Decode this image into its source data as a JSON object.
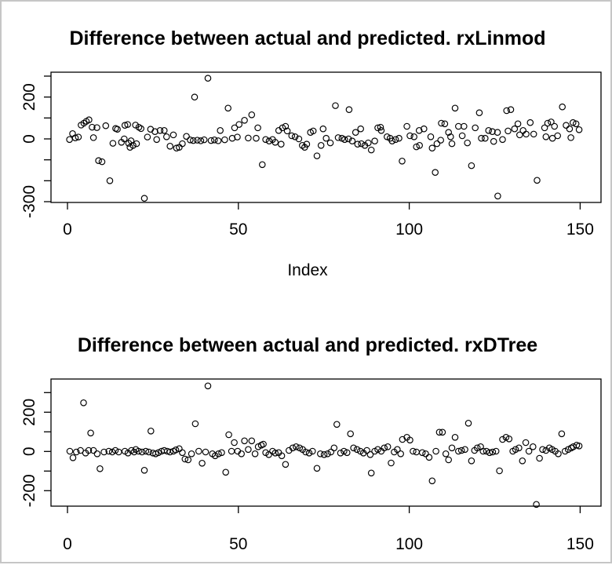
{
  "window": {
    "background": "#ffffff",
    "border_color": "#c6c6c6",
    "foreground": "#000000"
  },
  "chart_data": [
    {
      "type": "scatter",
      "title": "Difference between actual and predicted. rxLinmod",
      "xlabel": "Index",
      "ylabel": "",
      "marker": "open-circle",
      "grid": false,
      "legend": "none",
      "xlim": [
        -5,
        158
      ],
      "ylim": [
        -304,
        319
      ],
      "x_ticks": [
        0,
        50,
        100,
        150
      ],
      "x_tick_labels": [
        "0",
        "50",
        "100",
        "150"
      ],
      "y_ticks": [
        300,
        200,
        100,
        0,
        -100,
        -200,
        -300
      ],
      "y_tick_labels_visible": [
        "200",
        "0",
        "-300"
      ],
      "points": [
        [
          0.6,
          -3
        ],
        [
          1.5,
          25
        ],
        [
          2.3,
          5
        ],
        [
          3.2,
          9
        ],
        [
          4,
          66
        ],
        [
          4.8,
          75
        ],
        [
          5.5,
          84
        ],
        [
          6.3,
          91
        ],
        [
          7.2,
          56
        ],
        [
          7.6,
          6
        ],
        [
          8.6,
          54
        ],
        [
          9.1,
          -104
        ],
        [
          10.1,
          -109
        ],
        [
          11.2,
          63
        ],
        [
          12.4,
          -200
        ],
        [
          13.3,
          -21
        ],
        [
          14.1,
          50
        ],
        [
          14.6,
          46
        ],
        [
          15.8,
          -16
        ],
        [
          16.6,
          0
        ],
        [
          16.8,
          65
        ],
        [
          17.6,
          69
        ],
        [
          17.9,
          -21
        ],
        [
          18.3,
          -40
        ],
        [
          18.6,
          -9
        ],
        [
          19.2,
          -31
        ],
        [
          19.9,
          66
        ],
        [
          20.2,
          -23
        ],
        [
          20.9,
          56
        ],
        [
          21.5,
          49
        ],
        [
          22.5,
          -284
        ],
        [
          23.4,
          9
        ],
        [
          24.3,
          46
        ],
        [
          25.6,
          35
        ],
        [
          26.1,
          -3
        ],
        [
          27.1,
          40
        ],
        [
          28.3,
          40
        ],
        [
          29,
          10
        ],
        [
          30,
          -35
        ],
        [
          31,
          19
        ],
        [
          31.9,
          -44
        ],
        [
          32.7,
          -40
        ],
        [
          33.6,
          -23
        ],
        [
          34.8,
          12
        ],
        [
          35.9,
          -5
        ],
        [
          36.8,
          -8
        ],
        [
          37.2,
          200
        ],
        [
          38,
          -6
        ],
        [
          39,
          -9
        ],
        [
          40,
          -4
        ],
        [
          41.1,
          290
        ],
        [
          42,
          -8
        ],
        [
          43,
          -5
        ],
        [
          44.1,
          -9
        ],
        [
          44.7,
          40
        ],
        [
          46,
          -4
        ],
        [
          47,
          147
        ],
        [
          48.2,
          3
        ],
        [
          48.9,
          53
        ],
        [
          49.7,
          9
        ],
        [
          50.2,
          69
        ],
        [
          51.8,
          89
        ],
        [
          52.9,
          4
        ],
        [
          53.9,
          115
        ],
        [
          55.2,
          3
        ],
        [
          55.7,
          53
        ],
        [
          57,
          -123
        ],
        [
          58,
          -3
        ],
        [
          59,
          -10
        ],
        [
          60,
          -3
        ],
        [
          60.8,
          -16
        ],
        [
          61.8,
          40
        ],
        [
          62.5,
          -25
        ],
        [
          62.9,
          53
        ],
        [
          63.8,
          60
        ],
        [
          64.3,
          38
        ],
        [
          65.6,
          15
        ],
        [
          66.6,
          10
        ],
        [
          67.7,
          0
        ],
        [
          68.7,
          -31
        ],
        [
          69.4,
          -40
        ],
        [
          70,
          -25
        ],
        [
          71.1,
          31
        ],
        [
          71.9,
          38
        ],
        [
          73,
          -81
        ],
        [
          74.2,
          -31
        ],
        [
          74.8,
          48
        ],
        [
          75.7,
          3
        ],
        [
          76.9,
          -19
        ],
        [
          78.4,
          159
        ],
        [
          79.2,
          6
        ],
        [
          80.3,
          3
        ],
        [
          81.1,
          -3
        ],
        [
          82.2,
          0
        ],
        [
          82.4,
          140
        ],
        [
          83.3,
          -10
        ],
        [
          84.3,
          31
        ],
        [
          84.9,
          -25
        ],
        [
          85.8,
          48
        ],
        [
          86,
          -23
        ],
        [
          87,
          -31
        ],
        [
          88,
          -19
        ],
        [
          88.9,
          -53
        ],
        [
          89.9,
          -10
        ],
        [
          90.8,
          53
        ],
        [
          91.6,
          56
        ],
        [
          91.8,
          40
        ],
        [
          93.5,
          10
        ],
        [
          94.4,
          3
        ],
        [
          95,
          -10
        ],
        [
          96,
          -3
        ],
        [
          97,
          3
        ],
        [
          97.9,
          -106
        ],
        [
          99.3,
          60
        ],
        [
          100.2,
          15
        ],
        [
          101.4,
          10
        ],
        [
          102.1,
          -38
        ],
        [
          102.9,
          40
        ],
        [
          103,
          -31
        ],
        [
          104.3,
          48
        ],
        [
          106.3,
          10
        ],
        [
          106.7,
          -44
        ],
        [
          107.6,
          -160
        ],
        [
          108.1,
          -23
        ],
        [
          109.2,
          -6
        ],
        [
          109.4,
          75
        ],
        [
          110.4,
          72
        ],
        [
          111.5,
          31
        ],
        [
          112.1,
          10
        ],
        [
          112.5,
          -23
        ],
        [
          113.4,
          147
        ],
        [
          114.4,
          60
        ],
        [
          115.5,
          15
        ],
        [
          116,
          60
        ],
        [
          117,
          -19
        ],
        [
          118.2,
          -128
        ],
        [
          119.3,
          53
        ],
        [
          120.5,
          125
        ],
        [
          121.1,
          3
        ],
        [
          122.2,
          3
        ],
        [
          123.2,
          40
        ],
        [
          124.3,
          35
        ],
        [
          124.7,
          -12
        ],
        [
          125.8,
          31
        ],
        [
          125.9,
          -273
        ],
        [
          127.3,
          -3
        ],
        [
          128.5,
          135
        ],
        [
          128.9,
          38
        ],
        [
          129.7,
          140
        ],
        [
          130.8,
          48
        ],
        [
          131.8,
          72
        ],
        [
          132.3,
          19
        ],
        [
          133.3,
          40
        ],
        [
          134.2,
          23
        ],
        [
          135.4,
          78
        ],
        [
          136.4,
          23
        ],
        [
          137.4,
          -198
        ],
        [
          139.6,
          53
        ],
        [
          140,
          10
        ],
        [
          140.5,
          75
        ],
        [
          141.5,
          81
        ],
        [
          141.9,
          3
        ],
        [
          142.5,
          60
        ],
        [
          143.4,
          15
        ],
        [
          144.8,
          153
        ],
        [
          145.9,
          65
        ],
        [
          146.9,
          48
        ],
        [
          147.3,
          6
        ],
        [
          147.9,
          78
        ],
        [
          148.8,
          72
        ],
        [
          149.7,
          44
        ]
      ]
    },
    {
      "type": "scatter",
      "title": "Difference between actual and predicted. rxDTree",
      "xlabel": "",
      "ylabel": "",
      "marker": "open-circle",
      "grid": false,
      "legend": "none",
      "xlim": [
        -5,
        158
      ],
      "ylim": [
        -288,
        360
      ],
      "x_ticks": [
        0,
        50,
        100,
        150
      ],
      "x_tick_labels": [
        "0",
        "50",
        "100",
        "150"
      ],
      "y_ticks": [
        300,
        200,
        100,
        0,
        -100,
        -200
      ],
      "y_tick_labels_visible": [
        "200",
        "0",
        "-200"
      ],
      "points": [
        [
          0.7,
          1
        ],
        [
          1.6,
          -32
        ],
        [
          2.6,
          -3
        ],
        [
          3.8,
          5
        ],
        [
          4.7,
          248
        ],
        [
          5.3,
          -8
        ],
        [
          6.2,
          5
        ],
        [
          6.8,
          94
        ],
        [
          7.6,
          5
        ],
        [
          8.7,
          -12
        ],
        [
          9.5,
          -88
        ],
        [
          10.7,
          -3
        ],
        [
          12.1,
          1
        ],
        [
          13.1,
          -3
        ],
        [
          14,
          5
        ],
        [
          15,
          -3
        ],
        [
          16.8,
          1
        ],
        [
          17.7,
          -8
        ],
        [
          18.7,
          5
        ],
        [
          19.5,
          -3
        ],
        [
          20,
          10
        ],
        [
          20.8,
          1
        ],
        [
          21.8,
          -3
        ],
        [
          22.5,
          -96
        ],
        [
          22.9,
          1
        ],
        [
          23.8,
          -3
        ],
        [
          24.4,
          104
        ],
        [
          25,
          -8
        ],
        [
          25.8,
          -12
        ],
        [
          26.6,
          -6
        ],
        [
          27.5,
          1
        ],
        [
          28.3,
          5
        ],
        [
          29.2,
          1
        ],
        [
          30,
          -3
        ],
        [
          31,
          1
        ],
        [
          31.7,
          8
        ],
        [
          32.7,
          14
        ],
        [
          33.6,
          -6
        ],
        [
          34.4,
          -39
        ],
        [
          35.3,
          -43
        ],
        [
          36.3,
          -12
        ],
        [
          37.4,
          141
        ],
        [
          38.4,
          1
        ],
        [
          39.4,
          -60
        ],
        [
          40.4,
          -3
        ],
        [
          41.1,
          334
        ],
        [
          42.4,
          -12
        ],
        [
          43.2,
          -22
        ],
        [
          44.2,
          -12
        ],
        [
          45.1,
          -6
        ],
        [
          46.3,
          -106
        ],
        [
          47.2,
          85
        ],
        [
          48,
          1
        ],
        [
          48.8,
          45
        ],
        [
          49.8,
          1
        ],
        [
          50.9,
          -12
        ],
        [
          51.8,
          54
        ],
        [
          52.9,
          10
        ],
        [
          53.9,
          54
        ],
        [
          54.9,
          -12
        ],
        [
          55.8,
          24
        ],
        [
          56.7,
          32
        ],
        [
          57.3,
          37
        ],
        [
          58,
          -6
        ],
        [
          58.9,
          -16
        ],
        [
          60,
          1
        ],
        [
          60.8,
          -8
        ],
        [
          61.8,
          -6
        ],
        [
          62.7,
          -22
        ],
        [
          63.8,
          -66
        ],
        [
          64.8,
          5
        ],
        [
          65.9,
          18
        ],
        [
          66.9,
          24
        ],
        [
          67.9,
          18
        ],
        [
          68.8,
          10
        ],
        [
          69.7,
          -3
        ],
        [
          70.7,
          -8
        ],
        [
          71.7,
          1
        ],
        [
          73,
          -86
        ],
        [
          74,
          -12
        ],
        [
          75.1,
          -16
        ],
        [
          76.1,
          -12
        ],
        [
          77.1,
          -3
        ],
        [
          78,
          18
        ],
        [
          78.8,
          138
        ],
        [
          79.9,
          -8
        ],
        [
          80.9,
          1
        ],
        [
          81.8,
          -6
        ],
        [
          82.8,
          90
        ],
        [
          83.7,
          18
        ],
        [
          84.7,
          10
        ],
        [
          85.7,
          1
        ],
        [
          86.6,
          -8
        ],
        [
          87.6,
          5
        ],
        [
          88.6,
          -16
        ],
        [
          88.9,
          -110
        ],
        [
          89.9,
          1
        ],
        [
          90.8,
          10
        ],
        [
          91.8,
          1
        ],
        [
          92.7,
          18
        ],
        [
          93.7,
          24
        ],
        [
          94.7,
          -59
        ],
        [
          95.6,
          -3
        ],
        [
          96.5,
          10
        ],
        [
          97.5,
          -12
        ],
        [
          98,
          61
        ],
        [
          99.3,
          72
        ],
        [
          100.2,
          58
        ],
        [
          101.1,
          1
        ],
        [
          102.1,
          -3
        ],
        [
          103.8,
          -6
        ],
        [
          104.8,
          -12
        ],
        [
          105.8,
          -30
        ],
        [
          106.7,
          -150
        ],
        [
          107.8,
          1
        ],
        [
          108.8,
          98
        ],
        [
          109.7,
          98
        ],
        [
          110.7,
          -12
        ],
        [
          111.5,
          -43
        ],
        [
          112.5,
          18
        ],
        [
          113.4,
          72
        ],
        [
          114.4,
          1
        ],
        [
          115.3,
          5
        ],
        [
          116.3,
          10
        ],
        [
          117.3,
          144
        ],
        [
          118.2,
          -48
        ],
        [
          119.1,
          5
        ],
        [
          119.9,
          18
        ],
        [
          120.9,
          24
        ],
        [
          121.6,
          1
        ],
        [
          122.6,
          1
        ],
        [
          123.5,
          -6
        ],
        [
          124.4,
          -3
        ],
        [
          125.4,
          1
        ],
        [
          126.4,
          -99
        ],
        [
          127.3,
          61
        ],
        [
          128.3,
          72
        ],
        [
          129.2,
          64
        ],
        [
          130.3,
          1
        ],
        [
          131.1,
          10
        ],
        [
          132.1,
          18
        ],
        [
          133.1,
          -48
        ],
        [
          134.1,
          45
        ],
        [
          135,
          1
        ],
        [
          136.2,
          24
        ],
        [
          137.2,
          -270
        ],
        [
          138.1,
          -35
        ],
        [
          139,
          10
        ],
        [
          140,
          5
        ],
        [
          141,
          18
        ],
        [
          141.8,
          10
        ],
        [
          142.7,
          1
        ],
        [
          143.6,
          -12
        ],
        [
          144.6,
          90
        ],
        [
          145.6,
          1
        ],
        [
          146.5,
          10
        ],
        [
          147.4,
          18
        ],
        [
          148,
          24
        ],
        [
          149,
          32
        ],
        [
          149.7,
          28
        ]
      ]
    }
  ]
}
